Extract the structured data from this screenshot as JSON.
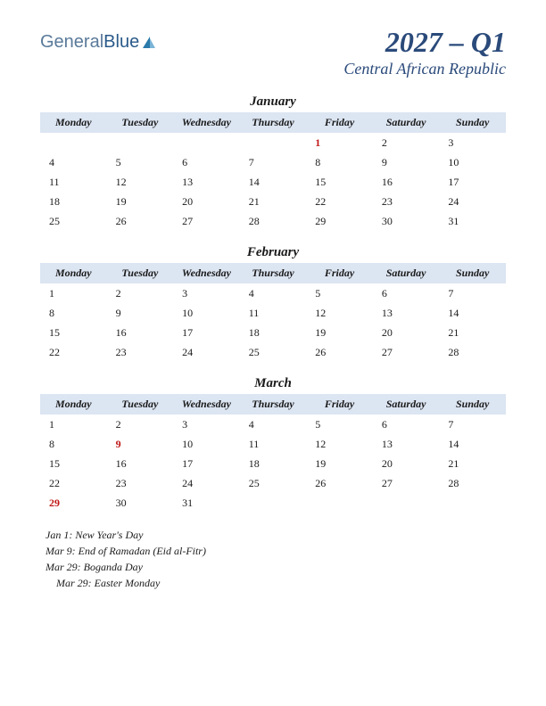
{
  "logo": {
    "part1": "General",
    "part2": "Blue"
  },
  "title": {
    "quarter": "2027 – Q1",
    "country": "Central African Republic"
  },
  "day_headers": [
    "Monday",
    "Tuesday",
    "Wednesday",
    "Thursday",
    "Friday",
    "Saturday",
    "Sunday"
  ],
  "colors": {
    "header_bg": "#dce5f2",
    "title_color": "#2a4a7a",
    "holiday_color": "#c01818",
    "text_color": "#1a1a1a",
    "background": "#ffffff"
  },
  "typography": {
    "quarter_fontsize": 32,
    "country_fontsize": 18,
    "month_fontsize": 15,
    "header_fontsize": 12,
    "cell_fontsize": 12,
    "holidays_fontsize": 12
  },
  "months": [
    {
      "name": "January",
      "weeks": [
        [
          "",
          "",
          "",
          "",
          "1",
          "2",
          "3"
        ],
        [
          "4",
          "5",
          "6",
          "7",
          "8",
          "9",
          "10"
        ],
        [
          "11",
          "12",
          "13",
          "14",
          "15",
          "16",
          "17"
        ],
        [
          "18",
          "19",
          "20",
          "21",
          "22",
          "23",
          "24"
        ],
        [
          "25",
          "26",
          "27",
          "28",
          "29",
          "30",
          "31"
        ]
      ],
      "holiday_days": [
        "1"
      ]
    },
    {
      "name": "February",
      "weeks": [
        [
          "1",
          "2",
          "3",
          "4",
          "5",
          "6",
          "7"
        ],
        [
          "8",
          "9",
          "10",
          "11",
          "12",
          "13",
          "14"
        ],
        [
          "15",
          "16",
          "17",
          "18",
          "19",
          "20",
          "21"
        ],
        [
          "22",
          "23",
          "24",
          "25",
          "26",
          "27",
          "28"
        ]
      ],
      "holiday_days": []
    },
    {
      "name": "March",
      "weeks": [
        [
          "1",
          "2",
          "3",
          "4",
          "5",
          "6",
          "7"
        ],
        [
          "8",
          "9",
          "10",
          "11",
          "12",
          "13",
          "14"
        ],
        [
          "15",
          "16",
          "17",
          "18",
          "19",
          "20",
          "21"
        ],
        [
          "22",
          "23",
          "24",
          "25",
          "26",
          "27",
          "28"
        ],
        [
          "29",
          "30",
          "31",
          "",
          "",
          "",
          ""
        ]
      ],
      "holiday_days": [
        "9",
        "29"
      ]
    }
  ],
  "holidays_list": [
    {
      "text": "Jan 1: New Year's Day",
      "indent": false
    },
    {
      "text": "Mar 9: End of Ramadan (Eid al-Fitr)",
      "indent": false
    },
    {
      "text": "Mar 29: Boganda Day",
      "indent": false
    },
    {
      "text": "Mar 29: Easter Monday",
      "indent": true
    }
  ]
}
